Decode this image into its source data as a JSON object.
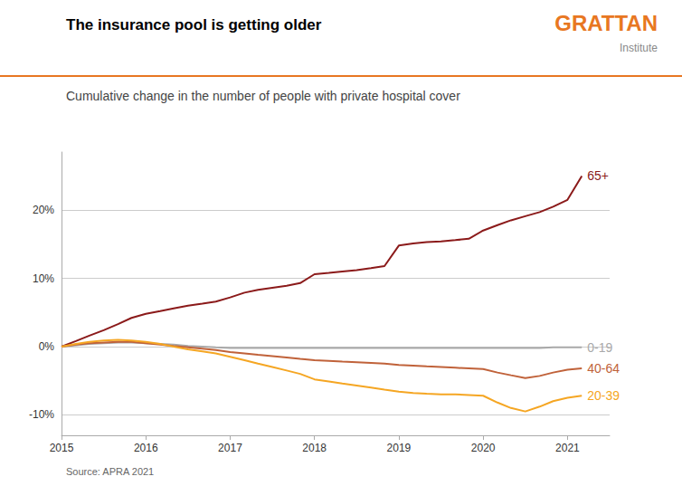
{
  "chart_data": {
    "type": "line",
    "title": "The insurance pool is getting older",
    "subtitle": "Cumulative change in the number of people with private hospital cover",
    "annotations": [
      "GRATTAN",
      "Institute",
      "Source: APRA 2021"
    ],
    "x": [
      2015.0,
      2015.17,
      2015.33,
      2015.5,
      2015.67,
      2015.83,
      2016.0,
      2016.17,
      2016.33,
      2016.5,
      2016.67,
      2016.83,
      2017.0,
      2017.17,
      2017.33,
      2017.5,
      2017.67,
      2017.83,
      2018.0,
      2018.17,
      2018.33,
      2018.5,
      2018.67,
      2018.83,
      2019.0,
      2019.17,
      2019.33,
      2019.5,
      2019.67,
      2019.83,
      2020.0,
      2020.17,
      2020.33,
      2020.5,
      2020.67,
      2020.83,
      2021.0,
      2021.17
    ],
    "series": [
      {
        "name": "65+",
        "color": "#8B1A1A",
        "values": [
          0.0,
          0.008,
          0.016,
          0.024,
          0.033,
          0.042,
          0.048,
          0.052,
          0.056,
          0.06,
          0.063,
          0.066,
          0.072,
          0.079,
          0.083,
          0.086,
          0.089,
          0.093,
          0.106,
          0.108,
          0.11,
          0.112,
          0.115,
          0.118,
          0.148,
          0.151,
          0.153,
          0.154,
          0.156,
          0.158,
          0.17,
          0.178,
          0.185,
          0.191,
          0.197,
          0.205,
          0.215,
          0.25
        ]
      },
      {
        "name": "0-19",
        "color": "#A9A9A9",
        "values": [
          0.0,
          0.002,
          0.004,
          0.005,
          0.006,
          0.006,
          0.005,
          0.004,
          0.003,
          0.001,
          0.0,
          -0.001,
          -0.002,
          -0.002,
          -0.002,
          -0.002,
          -0.002,
          -0.002,
          -0.002,
          -0.002,
          -0.002,
          -0.002,
          -0.002,
          -0.002,
          -0.002,
          -0.002,
          -0.002,
          -0.002,
          -0.002,
          -0.002,
          -0.002,
          -0.002,
          -0.002,
          -0.002,
          -0.002,
          -0.001,
          -0.001,
          -0.001
        ]
      },
      {
        "name": "40-64",
        "color": "#C0623A",
        "values": [
          0.0,
          0.003,
          0.005,
          0.006,
          0.007,
          0.007,
          0.005,
          0.003,
          0.001,
          -0.001,
          -0.003,
          -0.005,
          -0.008,
          -0.01,
          -0.012,
          -0.014,
          -0.016,
          -0.018,
          -0.02,
          -0.021,
          -0.022,
          -0.023,
          -0.024,
          -0.025,
          -0.027,
          -0.028,
          -0.029,
          -0.03,
          -0.031,
          -0.032,
          -0.033,
          -0.038,
          -0.042,
          -0.046,
          -0.043,
          -0.038,
          -0.034,
          -0.032
        ]
      },
      {
        "name": "20-39",
        "color": "#F5A623",
        "values": [
          0.0,
          0.004,
          0.007,
          0.009,
          0.01,
          0.009,
          0.007,
          0.004,
          0.0,
          -0.004,
          -0.007,
          -0.01,
          -0.015,
          -0.02,
          -0.025,
          -0.03,
          -0.035,
          -0.04,
          -0.048,
          -0.051,
          -0.054,
          -0.057,
          -0.06,
          -0.063,
          -0.066,
          -0.068,
          -0.069,
          -0.07,
          -0.07,
          -0.071,
          -0.072,
          -0.082,
          -0.09,
          -0.095,
          -0.088,
          -0.08,
          -0.075,
          -0.072
        ]
      }
    ],
    "xlim": [
      2015.0,
      2021.5
    ],
    "xticks": [
      2015,
      2016,
      2017,
      2018,
      2019,
      2020,
      2021
    ],
    "ylim": [
      -0.13,
      0.285
    ],
    "yticks": [
      {
        "value": -0.1,
        "label": "-10%"
      },
      {
        "value": 0.0,
        "label": "0%"
      },
      {
        "value": 0.1,
        "label": "10%"
      },
      {
        "value": 0.2,
        "label": "20%"
      }
    ],
    "grid": true
  }
}
